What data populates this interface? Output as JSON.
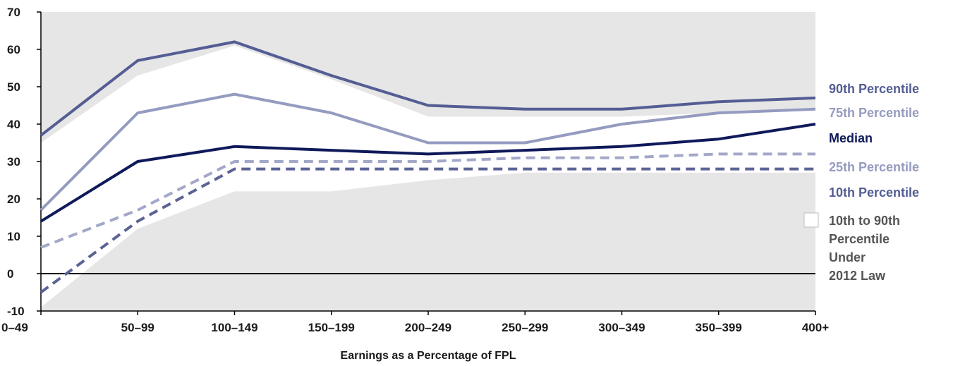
{
  "chart_data": {
    "type": "line",
    "xlabel": "Earnings as a Percentage of FPL",
    "ylabel": "",
    "ylim": [
      -10,
      70
    ],
    "yticks": [
      -10,
      0,
      10,
      20,
      30,
      40,
      50,
      60,
      70
    ],
    "categories": [
      "0–49",
      "50–99",
      "100–149",
      "150–199",
      "200–249",
      "250–299",
      "300–349",
      "350–399",
      "400+"
    ],
    "band": {
      "name": "10th to 90th Percentile Under 2012 Law",
      "low": [
        -9,
        12,
        22,
        22,
        25,
        27,
        27,
        27,
        27
      ],
      "high": [
        35,
        53,
        61,
        52,
        42,
        42,
        42,
        43,
        44
      ]
    },
    "series": [
      {
        "name": "90th Percentile",
        "values": [
          37,
          57,
          62,
          53,
          45,
          44,
          44,
          46,
          47
        ],
        "color": "#545d94",
        "dashed": false
      },
      {
        "name": "75th Percentile",
        "values": [
          17,
          43,
          48,
          43,
          35,
          35,
          40,
          43,
          44
        ],
        "color": "#959bc0",
        "dashed": false
      },
      {
        "name": "Median",
        "values": [
          14,
          30,
          34,
          33,
          32,
          33,
          34,
          36,
          40
        ],
        "color": "#0f1a5a",
        "dashed": false
      },
      {
        "name": "25th Percentile",
        "values": [
          7,
          17,
          30,
          30,
          30,
          31,
          31,
          32,
          32
        ],
        "color": "#a3a8c8",
        "dashed": true
      },
      {
        "name": "10th Percentile",
        "values": [
          -5,
          14,
          28,
          28,
          28,
          28,
          28,
          28,
          28
        ],
        "color": "#5c6495",
        "dashed": true
      }
    ],
    "legend": {
      "placement": "right",
      "items": [
        {
          "label": "90th Percentile",
          "color": "#545d94"
        },
        {
          "label": "75th Percentile",
          "color": "#959bc0"
        },
        {
          "label": "Median",
          "color": "#0f1a5a"
        },
        {
          "label": "25th Percentile",
          "color": "#959bc0"
        },
        {
          "label": "10th Percentile",
          "color": "#545d94"
        }
      ],
      "band_lines": [
        "10th to 90th",
        "Percentile",
        "Under",
        "2012 Law"
      ],
      "band_color": "#555555"
    },
    "plot_bg": "#e6e6e6",
    "grid": false
  }
}
